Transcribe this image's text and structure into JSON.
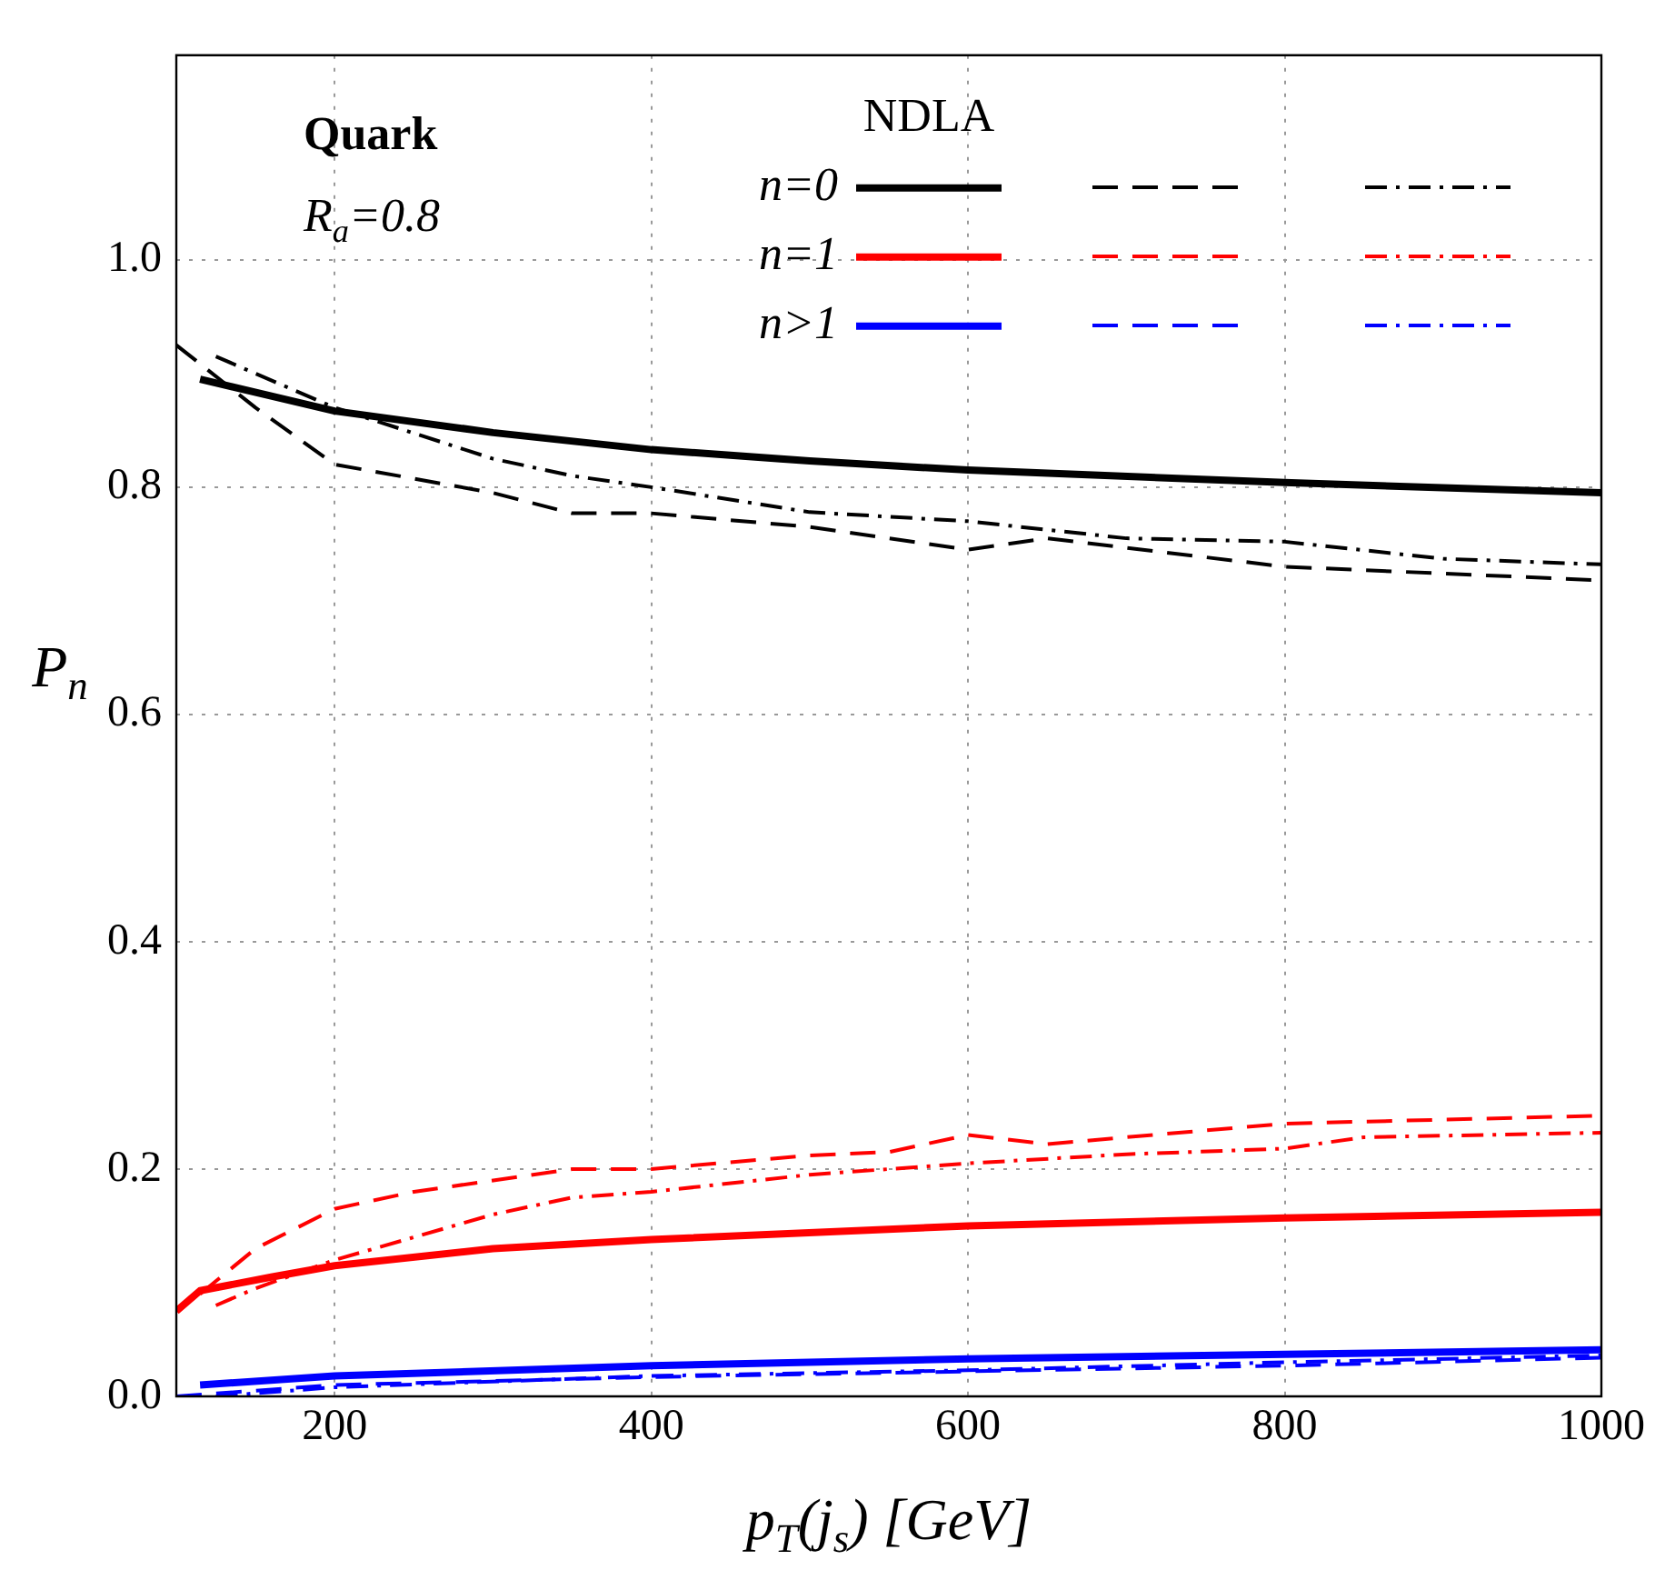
{
  "chart_data": {
    "type": "line",
    "xlabel": "p$_{T}$(j$_{s}$) [GeV]",
    "ylabel": "P$_{n}$",
    "xlim": [
      100,
      1000
    ],
    "ylim": [
      0,
      1.18
    ],
    "xticks": [
      200,
      400,
      600,
      800,
      1000
    ],
    "yticks": [
      {
        "value": 0,
        "label": "0.0"
      },
      0.2,
      0.4,
      0.6,
      0.8,
      {
        "value": 1,
        "label": "1.0"
      }
    ],
    "grid": true,
    "legend": "top right",
    "annotations": [
      "Quark",
      "R$_{a}$=0.8",
      "NDLA"
    ],
    "series": [
      {
        "name": "n=0",
        "color": "#000000",
        "line_style": "solid",
        "x": [
          115,
          200,
          300,
          400,
          500,
          600,
          800,
          1000
        ],
        "values": [
          0.895,
          0.867,
          0.848,
          0.833,
          0.823,
          0.815,
          0.804,
          0.795
        ]
      },
      {
        "color": "#000000",
        "line_style": "dashed",
        "x": [
          100,
          150,
          200,
          300,
          350,
          400,
          500,
          600,
          650,
          800,
          1000
        ],
        "values": [
          0.925,
          0.87,
          0.82,
          0.795,
          0.777,
          0.777,
          0.765,
          0.745,
          0.755,
          0.73,
          0.718
        ]
      },
      {
        "color": "#000000",
        "line_style": "dashdot",
        "x": [
          125,
          200,
          300,
          350,
          400,
          500,
          600,
          700,
          800,
          900,
          1000
        ],
        "values": [
          0.915,
          0.87,
          0.825,
          0.81,
          0.8,
          0.778,
          0.77,
          0.755,
          0.752,
          0.737,
          0.732
        ]
      },
      {
        "name": "n=1",
        "color": "#ff0000",
        "line_style": "solid",
        "x": [
          100,
          115,
          160,
          200,
          300,
          400,
          600,
          800,
          1000
        ],
        "values": [
          0.075,
          0.093,
          0.105,
          0.115,
          0.13,
          0.138,
          0.15,
          0.157,
          0.162
        ]
      },
      {
        "color": "#ff0000",
        "line_style": "dashed",
        "x": [
          115,
          150,
          200,
          250,
          350,
          400,
          500,
          550,
          600,
          650,
          800,
          1000
        ],
        "values": [
          0.09,
          0.13,
          0.165,
          0.18,
          0.2,
          0.2,
          0.212,
          0.215,
          0.23,
          0.222,
          0.24,
          0.247
        ]
      },
      {
        "color": "#ff0000",
        "line_style": "dashdot",
        "x": [
          125,
          150,
          200,
          300,
          350,
          400,
          500,
          600,
          700,
          800,
          850,
          1000
        ],
        "values": [
          0.08,
          0.095,
          0.12,
          0.16,
          0.175,
          0.18,
          0.195,
          0.205,
          0.213,
          0.218,
          0.228,
          0.232
        ]
      },
      {
        "name": "n>1",
        "color": "#0000ff",
        "line_style": "solid",
        "x": [
          115,
          200,
          400,
          600,
          800,
          1000
        ],
        "values": [
          0.01,
          0.018,
          0.027,
          0.033,
          0.037,
          0.041
        ]
      },
      {
        "color": "#0000ff",
        "line_style": "dashed",
        "x": [
          100,
          150,
          200,
          400,
          600,
          800,
          1000
        ],
        "values": [
          0.0,
          0.005,
          0.01,
          0.017,
          0.022,
          0.027,
          0.034
        ]
      },
      {
        "color": "#0000ff",
        "line_style": "dashdot",
        "x": [
          125,
          200,
          400,
          600,
          800,
          1000
        ],
        "values": [
          0.0,
          0.008,
          0.018,
          0.023,
          0.03,
          0.036
        ]
      }
    ]
  }
}
